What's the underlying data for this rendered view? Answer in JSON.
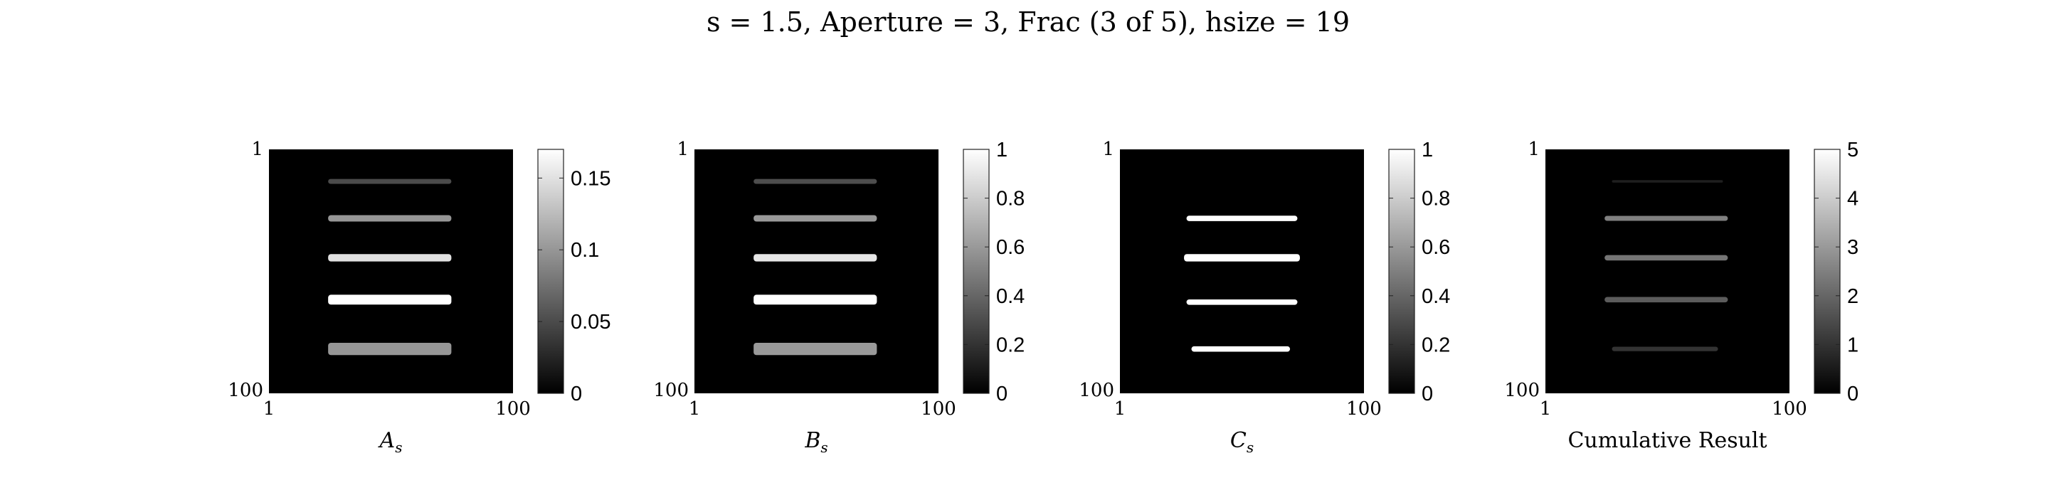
{
  "figure": {
    "title": "s = 1.5, Aperture = 3, Frac (3 of 5), hsize = 19"
  },
  "chart_data": [
    {
      "type": "heatmap",
      "xlabel_main": "A",
      "xlabel_sub": "s",
      "xticks": [
        "1",
        "100"
      ],
      "yticks": [
        "1",
        "100"
      ],
      "xlim": [
        1,
        100
      ],
      "ylim": [
        1,
        100
      ],
      "colormap": "gray",
      "clim": [
        0,
        0.17
      ],
      "colorbar_ticks": [
        "0",
        "0.05",
        "0.1",
        "0.15"
      ],
      "colorbar_tick_values": [
        0,
        0.05,
        0.1,
        0.15
      ],
      "bars": [
        {
          "row": 14,
          "col_start": 25,
          "col_end": 75,
          "value": 0.05,
          "thickness": 2.0
        },
        {
          "row": 29,
          "col_start": 25,
          "col_end": 75,
          "value": 0.1,
          "thickness": 2.6
        },
        {
          "row": 45,
          "col_start": 25,
          "col_end": 75,
          "value": 0.15,
          "thickness": 3.0
        },
        {
          "row": 62,
          "col_start": 25,
          "col_end": 75,
          "value": 0.17,
          "thickness": 4.0
        },
        {
          "row": 82,
          "col_start": 25,
          "col_end": 75,
          "value": 0.1,
          "thickness": 5.0
        }
      ]
    },
    {
      "type": "heatmap",
      "xlabel_main": "B",
      "xlabel_sub": "s",
      "xticks": [
        "1",
        "100"
      ],
      "yticks": [
        "1",
        "100"
      ],
      "xlim": [
        1,
        100
      ],
      "ylim": [
        1,
        100
      ],
      "colormap": "gray",
      "clim": [
        0,
        1
      ],
      "colorbar_ticks": [
        "0",
        "0.2",
        "0.4",
        "0.6",
        "0.8",
        "1"
      ],
      "colorbar_tick_values": [
        0,
        0.2,
        0.4,
        0.6,
        0.8,
        1
      ],
      "bars": [
        {
          "row": 14,
          "col_start": 25,
          "col_end": 75,
          "value": 0.3,
          "thickness": 2.0
        },
        {
          "row": 29,
          "col_start": 25,
          "col_end": 75,
          "value": 0.6,
          "thickness": 2.6
        },
        {
          "row": 45,
          "col_start": 25,
          "col_end": 75,
          "value": 0.9,
          "thickness": 3.0
        },
        {
          "row": 62,
          "col_start": 25,
          "col_end": 75,
          "value": 1.0,
          "thickness": 4.0
        },
        {
          "row": 82,
          "col_start": 25,
          "col_end": 75,
          "value": 0.6,
          "thickness": 5.0
        }
      ]
    },
    {
      "type": "heatmap",
      "xlabel_main": "C",
      "xlabel_sub": "s",
      "xticks": [
        "1",
        "100"
      ],
      "yticks": [
        "1",
        "100"
      ],
      "xlim": [
        1,
        100
      ],
      "ylim": [
        1,
        100
      ],
      "colormap": "gray",
      "clim": [
        0,
        1
      ],
      "colorbar_ticks": [
        "0",
        "0.2",
        "0.4",
        "0.6",
        "0.8",
        "1"
      ],
      "colorbar_tick_values": [
        0,
        0.2,
        0.4,
        0.6,
        0.8,
        1
      ],
      "bars": [
        {
          "row": 29,
          "col_start": 28,
          "col_end": 73,
          "value": 1,
          "thickness": 2.2
        },
        {
          "row": 45,
          "col_start": 27,
          "col_end": 74,
          "value": 1,
          "thickness": 3.0
        },
        {
          "row": 63,
          "col_start": 28,
          "col_end": 73,
          "value": 1,
          "thickness": 2.2
        },
        {
          "row": 82,
          "col_start": 30,
          "col_end": 70,
          "value": 1,
          "thickness": 2.2
        }
      ]
    },
    {
      "type": "heatmap",
      "xlabel": "Cumulative Result",
      "xticks": [
        "1",
        "100"
      ],
      "yticks": [
        "1",
        "100"
      ],
      "xlim": [
        1,
        100
      ],
      "ylim": [
        1,
        100
      ],
      "colormap": "gray",
      "clim": [
        0,
        5
      ],
      "colorbar_ticks": [
        "0",
        "1",
        "2",
        "3",
        "4",
        "5"
      ],
      "colorbar_tick_values": [
        0,
        1,
        2,
        3,
        4,
        5
      ],
      "bars": [
        {
          "row": 14,
          "col_start": 28,
          "col_end": 73,
          "value": 0.6,
          "thickness": 1.0
        },
        {
          "row": 29,
          "col_start": 25,
          "col_end": 75,
          "value": 2.5,
          "thickness": 2.0
        },
        {
          "row": 45,
          "col_start": 25,
          "col_end": 75,
          "value": 2.3,
          "thickness": 2.2
        },
        {
          "row": 62,
          "col_start": 25,
          "col_end": 75,
          "value": 1.8,
          "thickness": 2.2
        },
        {
          "row": 82,
          "col_start": 28,
          "col_end": 71,
          "value": 1.0,
          "thickness": 1.8
        }
      ]
    }
  ]
}
